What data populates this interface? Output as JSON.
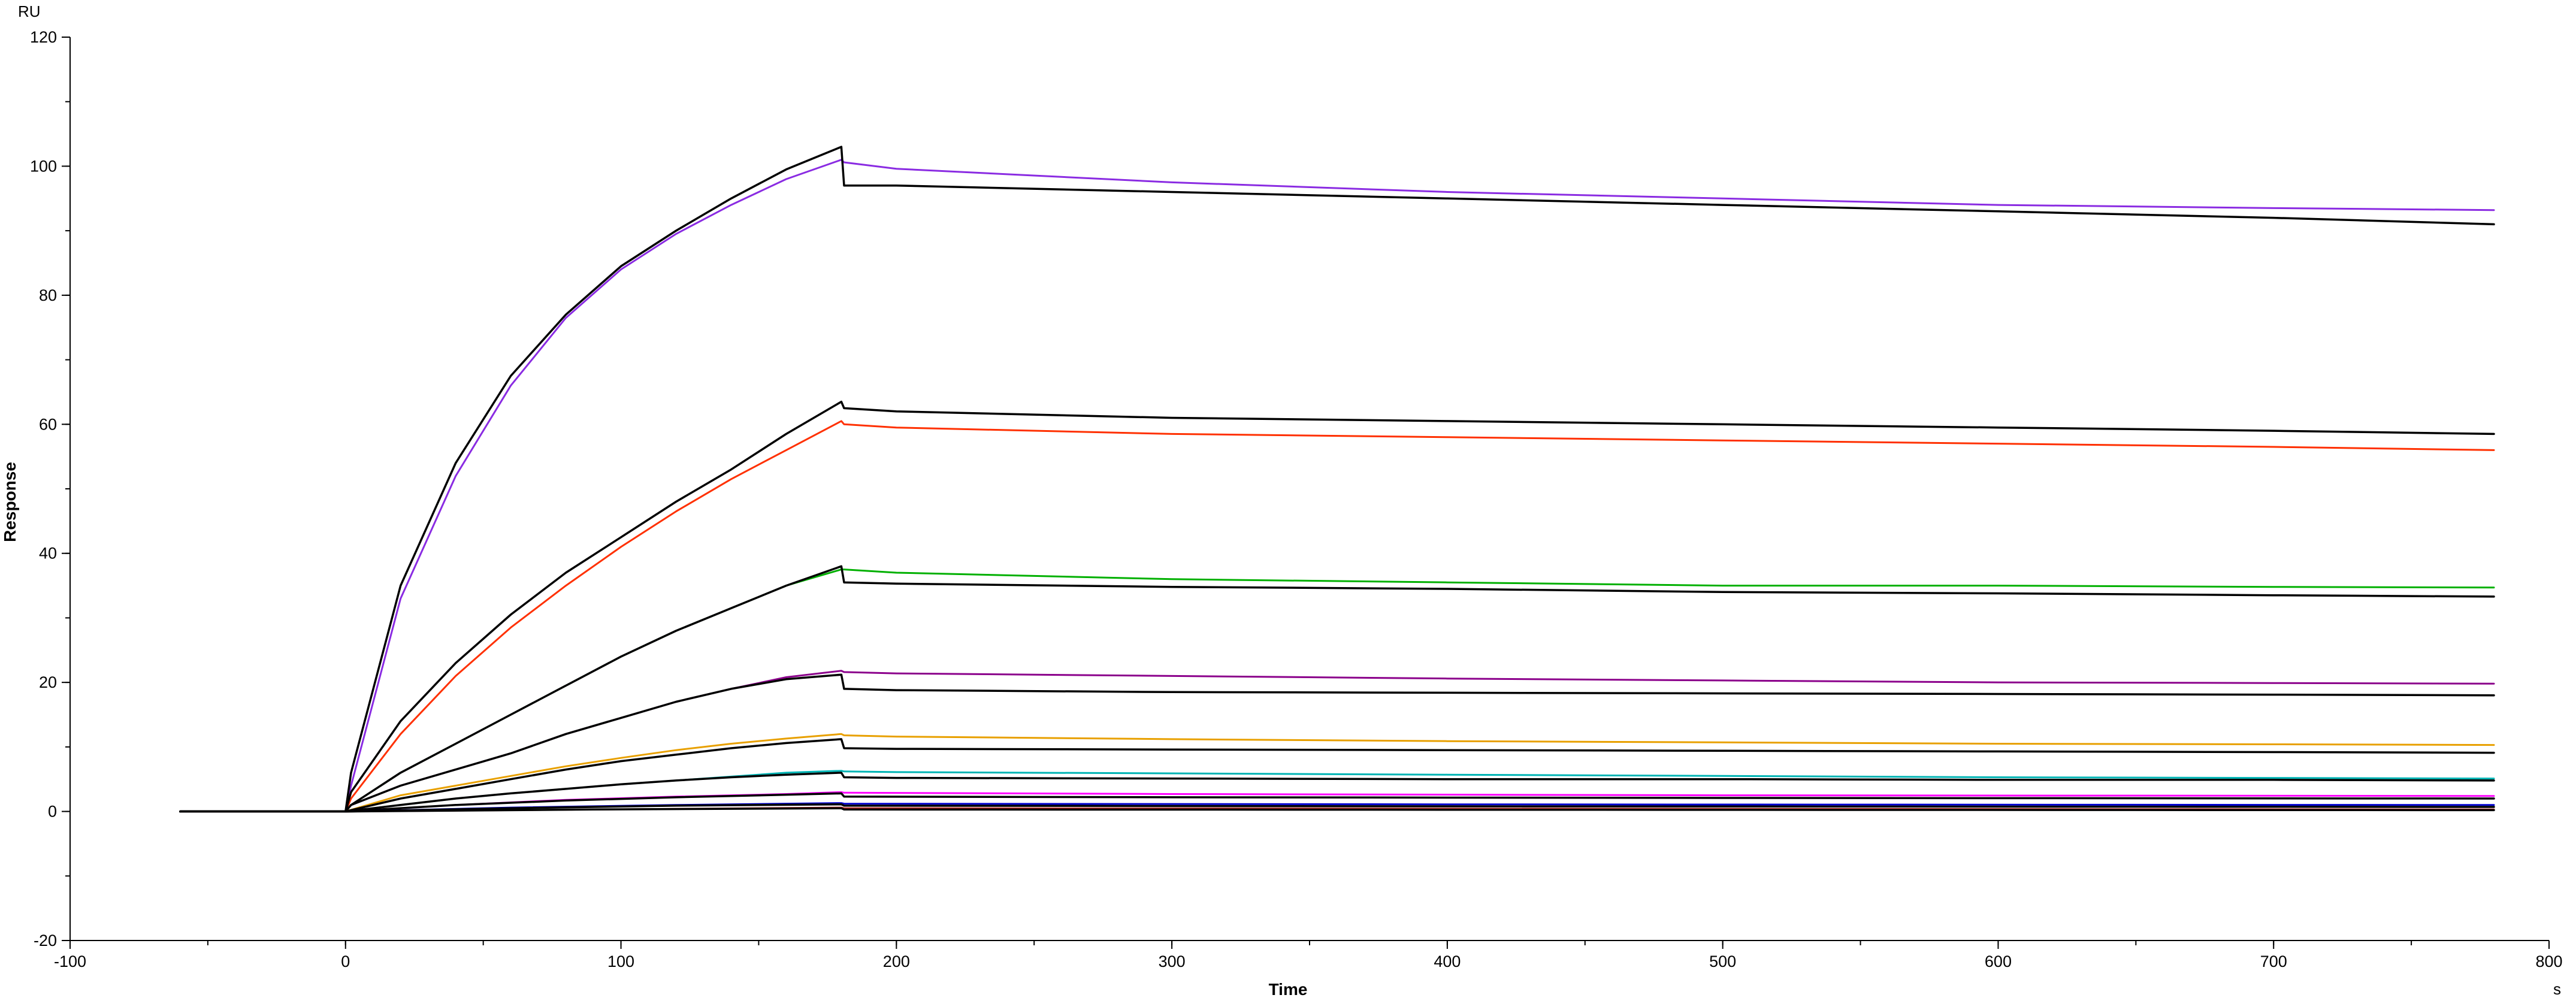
{
  "chart_data": {
    "type": "line",
    "title": "",
    "xlabel": "Time",
    "ylabel": "Response",
    "x_unit": "s",
    "y_unit": "RU",
    "xlim": [
      -100,
      800
    ],
    "ylim": [
      -20,
      120
    ],
    "x_ticks": [
      -100,
      0,
      100,
      200,
      300,
      400,
      500,
      600,
      700,
      800
    ],
    "y_ticks": [
      -20,
      0,
      20,
      40,
      60,
      80,
      100,
      120
    ],
    "x_minor_step": 50,
    "y_minor_step": 10,
    "grid": false,
    "legend": "none",
    "association_end": 180,
    "series": [
      {
        "color": "#8a2be2",
        "values": [
          [
            -60,
            0
          ],
          [
            0,
            0
          ],
          [
            2,
            4
          ],
          [
            20,
            33
          ],
          [
            40,
            52
          ],
          [
            60,
            66
          ],
          [
            80,
            76.5
          ],
          [
            100,
            84
          ],
          [
            120,
            89.5
          ],
          [
            140,
            94
          ],
          [
            160,
            98
          ],
          [
            180,
            101
          ],
          [
            181,
            100.6
          ],
          [
            200,
            99.6
          ],
          [
            300,
            97.5
          ],
          [
            400,
            96
          ],
          [
            500,
            95
          ],
          [
            600,
            94
          ],
          [
            700,
            93.5
          ],
          [
            780,
            93.2
          ]
        ]
      },
      {
        "color": "#000000",
        "values": [
          [
            -60,
            0
          ],
          [
            0,
            0
          ],
          [
            2,
            6
          ],
          [
            20,
            35
          ],
          [
            40,
            54
          ],
          [
            60,
            67.5
          ],
          [
            80,
            77
          ],
          [
            100,
            84.5
          ],
          [
            120,
            90
          ],
          [
            140,
            95
          ],
          [
            160,
            99.5
          ],
          [
            180,
            103
          ],
          [
            181,
            97
          ],
          [
            200,
            97
          ],
          [
            300,
            96
          ],
          [
            400,
            95
          ],
          [
            500,
            94
          ],
          [
            600,
            93
          ],
          [
            700,
            92
          ],
          [
            780,
            91
          ]
        ]
      },
      {
        "color": "#ff3000",
        "values": [
          [
            -60,
            0
          ],
          [
            0,
            0
          ],
          [
            2,
            2
          ],
          [
            20,
            12
          ],
          [
            40,
            21
          ],
          [
            60,
            28.5
          ],
          [
            80,
            35
          ],
          [
            100,
            41
          ],
          [
            120,
            46.5
          ],
          [
            140,
            51.5
          ],
          [
            160,
            56
          ],
          [
            180,
            60.5
          ],
          [
            181,
            60
          ],
          [
            200,
            59.5
          ],
          [
            300,
            58.5
          ],
          [
            400,
            58
          ],
          [
            500,
            57.5
          ],
          [
            600,
            57
          ],
          [
            700,
            56.5
          ],
          [
            780,
            56
          ]
        ]
      },
      {
        "color": "#000000",
        "values": [
          [
            -60,
            0
          ],
          [
            0,
            0
          ],
          [
            2,
            3
          ],
          [
            20,
            14
          ],
          [
            40,
            23
          ],
          [
            60,
            30.5
          ],
          [
            80,
            37
          ],
          [
            100,
            42.5
          ],
          [
            120,
            48
          ],
          [
            140,
            53
          ],
          [
            160,
            58.5
          ],
          [
            180,
            63.5
          ],
          [
            181,
            62.5
          ],
          [
            200,
            62
          ],
          [
            300,
            61
          ],
          [
            400,
            60.5
          ],
          [
            500,
            60
          ],
          [
            600,
            59.5
          ],
          [
            700,
            59
          ],
          [
            780,
            58.5
          ]
        ]
      },
      {
        "color": "#00b000",
        "values": [
          [
            -60,
            0
          ],
          [
            0,
            0
          ],
          [
            2,
            1
          ],
          [
            20,
            6
          ],
          [
            40,
            10.5
          ],
          [
            60,
            15
          ],
          [
            80,
            19.5
          ],
          [
            100,
            24
          ],
          [
            120,
            28
          ],
          [
            140,
            31.5
          ],
          [
            160,
            35
          ],
          [
            180,
            37.5
          ],
          [
            181,
            37.5
          ],
          [
            200,
            37
          ],
          [
            300,
            36
          ],
          [
            400,
            35.5
          ],
          [
            500,
            35
          ],
          [
            600,
            35
          ],
          [
            700,
            34.8
          ],
          [
            780,
            34.7
          ]
        ]
      },
      {
        "color": "#000000",
        "values": [
          [
            -60,
            0
          ],
          [
            0,
            0
          ],
          [
            2,
            1
          ],
          [
            20,
            6
          ],
          [
            40,
            10.5
          ],
          [
            60,
            15
          ],
          [
            80,
            19.5
          ],
          [
            100,
            24
          ],
          [
            120,
            28
          ],
          [
            140,
            31.5
          ],
          [
            160,
            35
          ],
          [
            180,
            38
          ],
          [
            181,
            35.5
          ],
          [
            200,
            35.3
          ],
          [
            300,
            34.8
          ],
          [
            400,
            34.5
          ],
          [
            500,
            34
          ],
          [
            600,
            33.8
          ],
          [
            700,
            33.5
          ],
          [
            780,
            33.3
          ]
        ]
      },
      {
        "color": "#8b008b",
        "values": [
          [
            -60,
            0
          ],
          [
            0,
            0
          ],
          [
            2,
            1
          ],
          [
            20,
            4
          ],
          [
            40,
            6.5
          ],
          [
            60,
            9
          ],
          [
            80,
            12
          ],
          [
            100,
            14.5
          ],
          [
            120,
            17
          ],
          [
            140,
            19
          ],
          [
            160,
            20.8
          ],
          [
            180,
            21.8
          ],
          [
            181,
            21.6
          ],
          [
            200,
            21.4
          ],
          [
            300,
            21
          ],
          [
            400,
            20.6
          ],
          [
            500,
            20.3
          ],
          [
            600,
            20
          ],
          [
            700,
            19.9
          ],
          [
            780,
            19.8
          ]
        ]
      },
      {
        "color": "#000000",
        "values": [
          [
            -60,
            0
          ],
          [
            0,
            0
          ],
          [
            2,
            1
          ],
          [
            20,
            4
          ],
          [
            40,
            6.5
          ],
          [
            60,
            9
          ],
          [
            80,
            12
          ],
          [
            100,
            14.5
          ],
          [
            120,
            17
          ],
          [
            140,
            19
          ],
          [
            160,
            20.5
          ],
          [
            180,
            21.2
          ],
          [
            181,
            19
          ],
          [
            200,
            18.8
          ],
          [
            300,
            18.5
          ],
          [
            400,
            18.4
          ],
          [
            500,
            18.3
          ],
          [
            600,
            18.2
          ],
          [
            700,
            18.1
          ],
          [
            780,
            18
          ]
        ]
      },
      {
        "color": "#e8a000",
        "values": [
          [
            -60,
            0
          ],
          [
            0,
            0
          ],
          [
            20,
            2.5
          ],
          [
            40,
            4
          ],
          [
            60,
            5.5
          ],
          [
            80,
            7
          ],
          [
            100,
            8.3
          ],
          [
            120,
            9.5
          ],
          [
            140,
            10.5
          ],
          [
            160,
            11.3
          ],
          [
            180,
            12
          ],
          [
            181,
            11.8
          ],
          [
            200,
            11.6
          ],
          [
            300,
            11.2
          ],
          [
            400,
            10.9
          ],
          [
            500,
            10.7
          ],
          [
            600,
            10.5
          ],
          [
            700,
            10.4
          ],
          [
            780,
            10.3
          ]
        ]
      },
      {
        "color": "#000000",
        "values": [
          [
            -60,
            0
          ],
          [
            0,
            0
          ],
          [
            20,
            2
          ],
          [
            40,
            3.5
          ],
          [
            60,
            5
          ],
          [
            80,
            6.5
          ],
          [
            100,
            7.8
          ],
          [
            120,
            8.8
          ],
          [
            140,
            9.8
          ],
          [
            160,
            10.6
          ],
          [
            180,
            11.2
          ],
          [
            181,
            9.8
          ],
          [
            200,
            9.7
          ],
          [
            300,
            9.6
          ],
          [
            400,
            9.5
          ],
          [
            500,
            9.4
          ],
          [
            600,
            9.3
          ],
          [
            700,
            9.2
          ],
          [
            780,
            9.1
          ]
        ]
      },
      {
        "color": "#00b4b4",
        "values": [
          [
            -60,
            0
          ],
          [
            0,
            0
          ],
          [
            20,
            1
          ],
          [
            40,
            2
          ],
          [
            60,
            2.8
          ],
          [
            80,
            3.5
          ],
          [
            100,
            4.2
          ],
          [
            120,
            4.8
          ],
          [
            140,
            5.4
          ],
          [
            160,
            6
          ],
          [
            180,
            6.3
          ],
          [
            181,
            6.2
          ],
          [
            200,
            6.1
          ],
          [
            300,
            5.9
          ],
          [
            400,
            5.7
          ],
          [
            500,
            5.5
          ],
          [
            600,
            5.3
          ],
          [
            700,
            5.2
          ],
          [
            780,
            5.1
          ]
        ]
      },
      {
        "color": "#000000",
        "values": [
          [
            -60,
            0
          ],
          [
            0,
            0
          ],
          [
            20,
            1
          ],
          [
            40,
            2
          ],
          [
            60,
            2.8
          ],
          [
            80,
            3.5
          ],
          [
            100,
            4.2
          ],
          [
            120,
            4.8
          ],
          [
            140,
            5.3
          ],
          [
            160,
            5.7
          ],
          [
            180,
            6
          ],
          [
            181,
            5.3
          ],
          [
            200,
            5.2
          ],
          [
            300,
            5.1
          ],
          [
            400,
            5
          ],
          [
            500,
            5
          ],
          [
            600,
            4.9
          ],
          [
            700,
            4.9
          ],
          [
            780,
            4.8
          ]
        ]
      },
      {
        "color": "#ff00ff",
        "values": [
          [
            -60,
            0
          ],
          [
            0,
            0
          ],
          [
            40,
            1
          ],
          [
            80,
            1.8
          ],
          [
            120,
            2.3
          ],
          [
            160,
            2.7
          ],
          [
            180,
            3
          ],
          [
            181,
            2.9
          ],
          [
            300,
            2.7
          ],
          [
            500,
            2.5
          ],
          [
            780,
            2.4
          ]
        ]
      },
      {
        "color": "#000000",
        "values": [
          [
            -60,
            0
          ],
          [
            0,
            0
          ],
          [
            40,
            1
          ],
          [
            80,
            1.7
          ],
          [
            120,
            2.2
          ],
          [
            160,
            2.6
          ],
          [
            180,
            2.8
          ],
          [
            181,
            2.3
          ],
          [
            300,
            2.2
          ],
          [
            500,
            2.1
          ],
          [
            780,
            2
          ]
        ]
      },
      {
        "color": "#0000cd",
        "values": [
          [
            -60,
            0
          ],
          [
            0,
            0
          ],
          [
            60,
            0.6
          ],
          [
            120,
            1
          ],
          [
            180,
            1.3
          ],
          [
            181,
            1.2
          ],
          [
            400,
            1.1
          ],
          [
            780,
            1
          ]
        ]
      },
      {
        "color": "#000000",
        "values": [
          [
            -60,
            0
          ],
          [
            0,
            0
          ],
          [
            60,
            0.5
          ],
          [
            120,
            0.9
          ],
          [
            180,
            1.1
          ],
          [
            181,
            0.9
          ],
          [
            400,
            0.8
          ],
          [
            780,
            0.7
          ]
        ]
      },
      {
        "color": "#b22222",
        "values": [
          [
            -60,
            0
          ],
          [
            0,
            0
          ],
          [
            90,
            0.3
          ],
          [
            180,
            0.6
          ],
          [
            181,
            0.5
          ],
          [
            780,
            0.3
          ]
        ]
      },
      {
        "color": "#000000",
        "values": [
          [
            -60,
            0
          ],
          [
            0,
            0
          ],
          [
            90,
            0.3
          ],
          [
            180,
            0.5
          ],
          [
            181,
            0.3
          ],
          [
            780,
            0.2
          ]
        ]
      }
    ]
  }
}
